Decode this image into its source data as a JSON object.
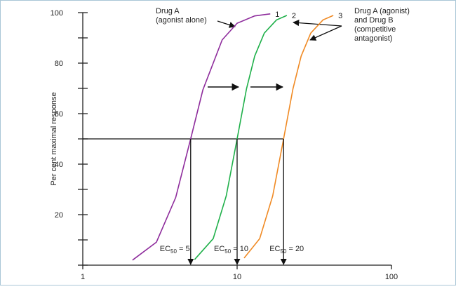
{
  "chart_data": {
    "type": "line",
    "y_label": "Per cent maximal response",
    "xlim": [
      1,
      100
    ],
    "xlog": true,
    "xticks": [
      1,
      10,
      100
    ],
    "ylim": [
      0,
      100
    ],
    "yticks": [
      20,
      40,
      60,
      80,
      100
    ],
    "y_minor_ticks": [
      0,
      10,
      30,
      50,
      70,
      90
    ],
    "series": [
      {
        "name": "1",
        "color": "#8e2c9c",
        "x": [
          2.1,
          3,
          4,
          5,
          6,
          8,
          10,
          13,
          16.4
        ],
        "values": [
          2.0,
          9.1,
          26.8,
          50,
          69.4,
          89.2,
          95.8,
          98.7,
          99.5
        ]
      },
      {
        "name": "2",
        "color": "#1fb04a",
        "x": [
          5.3,
          7,
          8.5,
          10,
          11.5,
          13,
          15,
          18,
          21
        ],
        "values": [
          2.2,
          10.5,
          27.4,
          50,
          69.8,
          82.8,
          91.9,
          97.1,
          98.9
        ]
      },
      {
        "name": "3",
        "color": "#f08a24",
        "x": [
          11.1,
          14,
          17,
          20,
          23,
          26,
          30,
          36,
          42
        ],
        "values": [
          2.8,
          10.5,
          27.4,
          50,
          69.8,
          82.8,
          91.9,
          97.1,
          98.9
        ]
      }
    ],
    "reference_y": 50,
    "ec50": [
      5,
      10,
      20
    ],
    "ec50_labels": [
      {
        "base": "EC",
        "sub": "50",
        "rest": " = 5"
      },
      {
        "base": "EC",
        "sub": "50",
        "rest": " = 10"
      },
      {
        "base": "EC",
        "sub": "50",
        "rest": " = 20"
      }
    ],
    "annotation_agonist": [
      "Drug A",
      "(agonist alone)"
    ],
    "annotation_antagonist": [
      "Drug A (agonist)",
      "and Drug B",
      "(competitive",
      "antagonist)"
    ]
  }
}
